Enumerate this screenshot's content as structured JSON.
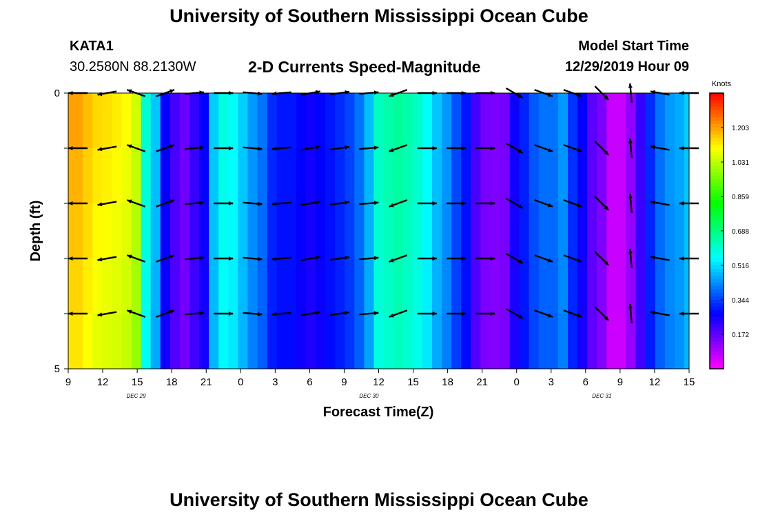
{
  "title": "University of Southern Mississippi Ocean Cube",
  "footer_title": "University of Southern Mississippi Ocean Cube",
  "station": {
    "name": "KATA1",
    "coords": "30.2580N 88.2130W"
  },
  "plot_title": "2-D Currents Speed-Magnitude",
  "model_start": {
    "label": "Model Start Time",
    "value": "12/29/2019 Hour 09"
  },
  "colors": {
    "vector": "#000000",
    "frame": "#000000"
  },
  "chart_data": {
    "type": "heatmap",
    "xlabel": "Forecast Time(Z)",
    "ylabel": "Depth (ft)",
    "x_ticks": [
      "9",
      "12",
      "15",
      "18",
      "21",
      "0",
      "3",
      "6",
      "9",
      "12",
      "15",
      "18",
      "21",
      "0",
      "3",
      "6",
      "9",
      "12",
      "15"
    ],
    "date_labels": [
      "DEC 29",
      "DEC 30",
      "DEC 31"
    ],
    "y_ticks": [
      "0",
      "5"
    ],
    "ylim": [
      0,
      5
    ],
    "colorbar": {
      "unit": "Knots",
      "ticks": [
        "1.203",
        "1.031",
        "0.859",
        "0.688",
        "0.516",
        "0.344",
        "0.172"
      ],
      "range": [
        0,
        1.375
      ]
    },
    "speed_by_hour": [
      1.2,
      1.2,
      1.17,
      1.14,
      1.13,
      1.12,
      1.1,
      1.05,
      0.6,
      0.49,
      0.28,
      0.2,
      0.16,
      0.22,
      0.27,
      0.5,
      0.58,
      0.56,
      0.5,
      0.44,
      0.4,
      0.32,
      0.3,
      0.3,
      0.28,
      0.26,
      0.28,
      0.3,
      0.32,
      0.35,
      0.4,
      0.48,
      0.62,
      0.64,
      0.66,
      0.64,
      0.61,
      0.56,
      0.49,
      0.44,
      0.36,
      0.3,
      0.2,
      0.15,
      0.14,
      0.15,
      0.26,
      0.31,
      0.37,
      0.4,
      0.4,
      0.44,
      0.33,
      0.27,
      0.18,
      0.14,
      0.06,
      0.06,
      0.12,
      0.22,
      0.32,
      0.4,
      0.44,
      0.46,
      0.5
    ],
    "depth_rows": [
      0,
      1,
      2,
      3,
      4,
      5
    ],
    "arrow_hours": [
      1,
      4,
      7,
      10,
      13,
      16,
      19,
      22,
      25,
      28,
      31,
      34,
      37,
      40,
      43,
      46,
      49,
      52,
      55,
      58,
      61,
      64
    ],
    "arrow_directions_deg": [
      180,
      190,
      160,
      20,
      5,
      0,
      355,
      185,
      10,
      8,
      5,
      200,
      0,
      0,
      0,
      330,
      340,
      340,
      315,
      95,
      170,
      180
    ],
    "arrow_depths": [
      0,
      1,
      2,
      3,
      4
    ],
    "grid": false,
    "legend": "right"
  }
}
